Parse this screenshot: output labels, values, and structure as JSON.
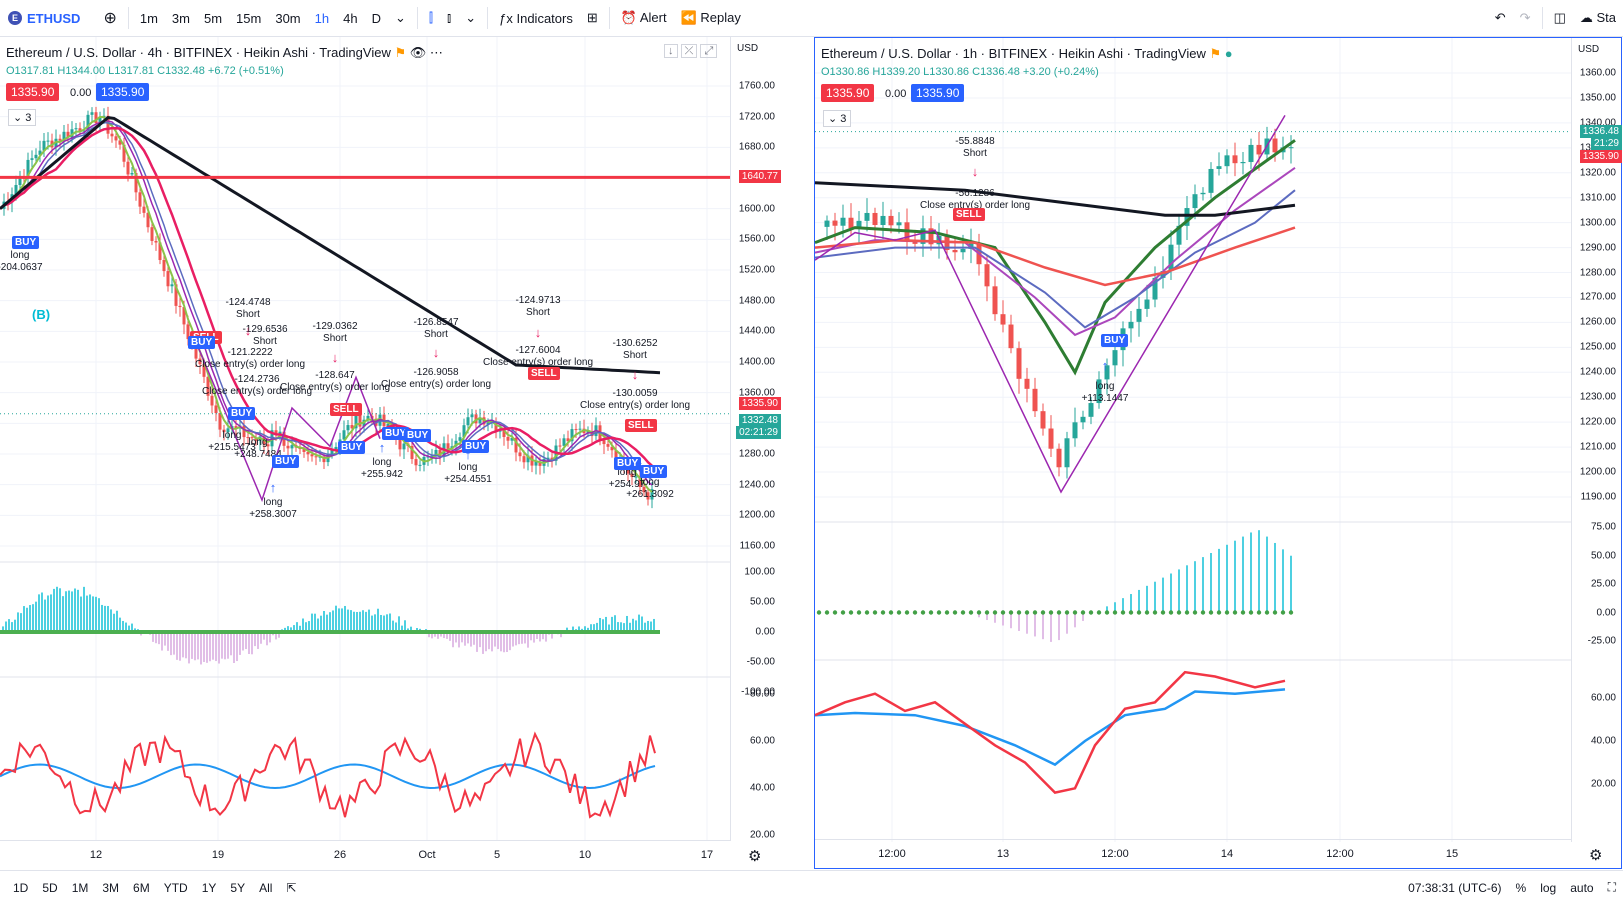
{
  "toolbar": {
    "symbol": "ETHUSD",
    "symbol_badge": "E",
    "add_icon": "plus-circle-icon",
    "intervals": [
      "1m",
      "3m",
      "5m",
      "15m",
      "30m",
      "1h",
      "4h",
      "D"
    ],
    "active_interval": "1h",
    "indicators_label": "Indicators",
    "alert_label": "Alert",
    "replay_label": "Replay",
    "right_partial_label": "Sta"
  },
  "left_chart": {
    "title": "Ethereum / U.S. Dollar · 4h · BITFINEX · Heikin Ashi · TradingView",
    "ohlc": {
      "o": "O1317.81",
      "h": "H1344.00",
      "l": "L1317.81",
      "c": "C1332.48",
      "chg": "+6.72 (+0.51%)"
    },
    "sell_chip": "1335.90",
    "mid_chip": "0.00",
    "buy_chip": "1335.90",
    "collapse": "3",
    "currency": "USD",
    "price_ticks": [
      "1760.00",
      "1720.00",
      "1680.00",
      "1640.00",
      "1600.00",
      "1560.00",
      "1520.00",
      "1480.00",
      "1440.00",
      "1400.00",
      "1360.00",
      "1320.00",
      "1280.00",
      "1240.00",
      "1200.00",
      "1160.00"
    ],
    "osc_ticks": [
      "100.00",
      "50.00",
      "0.00",
      "-50.00",
      "-100.00"
    ],
    "rsi_ticks": [
      "80.00",
      "60.00",
      "40.00",
      "20.00"
    ],
    "hline_price": "1640.77",
    "last_price": "1335.90",
    "close_price": "1332.48",
    "countdown": "02:21:29",
    "time_labels": [
      "12",
      "19",
      "26",
      "Oct",
      "5",
      "10",
      "17"
    ],
    "wave_label": "(B)",
    "annotations": [
      {
        "text": "-124.4748",
        "sub": "Short"
      },
      {
        "text": "-129.6536",
        "sub": "Short"
      },
      {
        "text": "-121.2222",
        "sub": "Close entry(s) order long"
      },
      {
        "text": "-124.2736",
        "sub": "Close entry(s) order long"
      },
      {
        "text": "-129.0362",
        "sub": "Short"
      },
      {
        "text": "-128.647",
        "sub": "Close entry(s) order long"
      },
      {
        "text": "-126.8547",
        "sub": "Short"
      },
      {
        "text": "-126.9058",
        "sub": "Close entry(s) order long"
      },
      {
        "text": "-124.9713",
        "sub": "Short"
      },
      {
        "text": "-127.6004",
        "sub": "Close entry(s) order long"
      },
      {
        "text": "-130.6252",
        "sub": "Short"
      },
      {
        "text": "-130.0059",
        "sub": "Close entry(s) order long"
      },
      {
        "text": "long",
        "sub": "-204.0637"
      },
      {
        "text": "long",
        "sub": "+215.5473"
      },
      {
        "text": "long",
        "sub": "+248.7484"
      },
      {
        "text": "long",
        "sub": "+258.3007"
      },
      {
        "text": "long",
        "sub": "+255.942"
      },
      {
        "text": "long",
        "sub": "+254.4551"
      },
      {
        "text": "long",
        "sub": "+254.97"
      },
      {
        "text": "long",
        "sub": "+261.3092"
      }
    ],
    "buy_label": "BUY",
    "sell_label": "SELL"
  },
  "right_chart": {
    "title": "Ethereum / U.S. Dollar · 1h · BITFINEX · Heikin Ashi · TradingView",
    "ohlc": {
      "o": "O1330.86",
      "h": "H1339.20",
      "l": "L1330.86",
      "c": "C1336.48",
      "chg": "+3.20 (+0.24%)"
    },
    "sell_chip": "1335.90",
    "mid_chip": "0.00",
    "buy_chip": "1335.90",
    "collapse": "3",
    "currency": "USD",
    "price_ticks": [
      "1360.00",
      "1350.00",
      "1340.00",
      "1330.00",
      "1320.00",
      "1310.00",
      "1300.00",
      "1290.00",
      "1280.00",
      "1270.00",
      "1260.00",
      "1250.00",
      "1240.00",
      "1230.00",
      "1220.00",
      "1210.00",
      "1200.00",
      "1190.00"
    ],
    "osc_ticks": [
      "75.00",
      "50.00",
      "25.00",
      "0.00",
      "-25.00"
    ],
    "rsi_ticks": [
      "60.00",
      "40.00",
      "20.00"
    ],
    "last_price": "1335.90",
    "close_price": "1336.48",
    "countdown": "21:29",
    "time_labels": [
      "12:00",
      "13",
      "12:00",
      "14",
      "12:00",
      "15"
    ],
    "annotations": [
      {
        "text": "-55.8848",
        "sub": "Short"
      },
      {
        "text": "-56.1286",
        "sub": "Close entry(s) order long"
      },
      {
        "text": "long",
        "sub": "+113.1447"
      }
    ],
    "buy_label": "BUY",
    "sell_label": "SELL"
  },
  "bottom": {
    "ranges": [
      "1D",
      "5D",
      "1M",
      "3M",
      "6M",
      "YTD",
      "1Y",
      "5Y",
      "All"
    ],
    "clock": "07:38:31 (UTC-6)",
    "percent": "%",
    "log": "log",
    "auto": "auto"
  }
}
